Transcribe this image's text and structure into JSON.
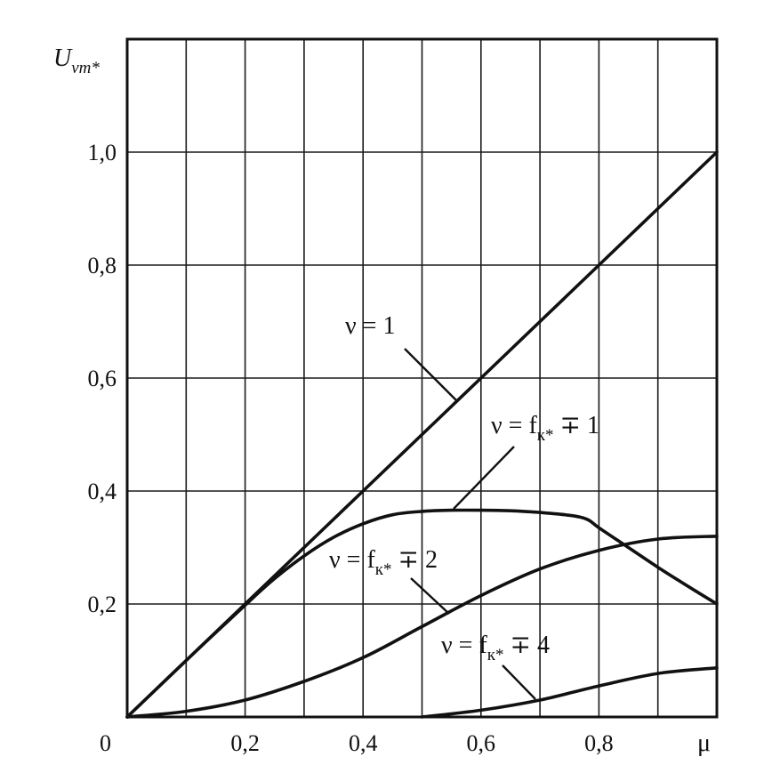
{
  "chart_data": {
    "type": "line",
    "title": "",
    "ylabel": {
      "main": "U",
      "sub": "νm*"
    },
    "xlabel": "μ",
    "origin_label": "0",
    "xlim": [
      0,
      1
    ],
    "ylim": [
      0,
      1.2
    ],
    "x_ticks": [
      {
        "value": 0.2,
        "label": "0,2"
      },
      {
        "value": 0.4,
        "label": "0,4"
      },
      {
        "value": 0.6,
        "label": "0,6"
      },
      {
        "value": 0.8,
        "label": "0,8"
      }
    ],
    "y_ticks": [
      {
        "value": 0.2,
        "label": "0,2"
      },
      {
        "value": 0.4,
        "label": "0,4"
      },
      {
        "value": 0.6,
        "label": "0,6"
      },
      {
        "value": 0.8,
        "label": "0,8"
      },
      {
        "value": 1.0,
        "label": "1,0"
      }
    ],
    "x_grid_step": 0.1,
    "y_grid_step": 0.2,
    "grid": true,
    "series": [
      {
        "name": "ν = 1",
        "label": {
          "prefix": "ν = 1",
          "sub": "",
          "suffix": ""
        },
        "x": [
          0,
          0.1,
          0.2,
          0.3,
          0.4,
          0.5,
          0.6,
          0.7,
          0.8,
          0.9,
          1.0
        ],
        "y": [
          0,
          0.1,
          0.2,
          0.3,
          0.4,
          0.5,
          0.6,
          0.7,
          0.8,
          0.9,
          1.0
        ]
      },
      {
        "name": "ν = fк* ∓ 1",
        "label": {
          "prefix": "ν = f",
          "sub": "к*",
          "suffix": " ∓ 1"
        },
        "x": [
          0,
          0.1,
          0.2,
          0.25,
          0.3,
          0.35,
          0.4,
          0.45,
          0.5,
          0.55,
          0.6,
          0.65,
          0.7,
          0.75,
          0.78,
          0.8,
          0.85,
          0.9,
          0.95,
          1.0
        ],
        "y": [
          0,
          0.1,
          0.198,
          0.245,
          0.285,
          0.318,
          0.342,
          0.358,
          0.364,
          0.366,
          0.366,
          0.365,
          0.362,
          0.357,
          0.35,
          0.335,
          0.3,
          0.265,
          0.232,
          0.2
        ]
      },
      {
        "name": "ν = fк* ∓ 2",
        "label": {
          "prefix": "ν = f",
          "sub": "к*",
          "suffix": " ∓ 2"
        },
        "x": [
          0,
          0.1,
          0.2,
          0.3,
          0.4,
          0.5,
          0.6,
          0.7,
          0.8,
          0.9,
          1.0
        ],
        "y": [
          0,
          0.01,
          0.03,
          0.063,
          0.105,
          0.16,
          0.215,
          0.262,
          0.295,
          0.315,
          0.32
        ]
      },
      {
        "name": "ν = fк* ∓ 4",
        "label": {
          "prefix": "ν = f",
          "sub": "к*",
          "suffix": " ∓ 4"
        },
        "x": [
          0.5,
          0.6,
          0.7,
          0.8,
          0.9,
          1.0
        ],
        "y": [
          0.0,
          0.012,
          0.03,
          0.055,
          0.077,
          0.087
        ]
      }
    ]
  }
}
